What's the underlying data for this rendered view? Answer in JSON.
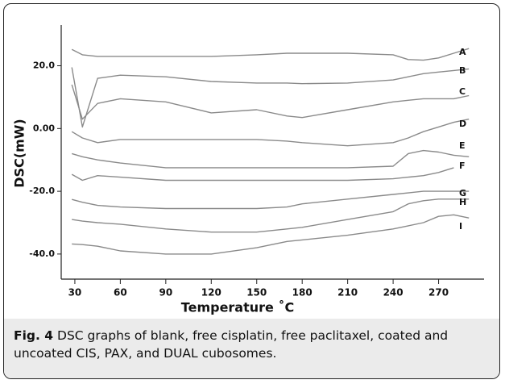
{
  "chart_data": {
    "type": "line",
    "xlabel": "Temperature ˚C",
    "ylabel": "DSC(mW)",
    "xlim": [
      21,
      300
    ],
    "ylim": [
      -48,
      33
    ],
    "xticks": [
      30,
      60,
      90,
      120,
      150,
      180,
      210,
      240,
      270
    ],
    "yticks": [
      {
        "value": 20,
        "label": "20.0"
      },
      {
        "value": 0,
        "label": "0.00"
      },
      {
        "value": -20,
        "label": "-20.0"
      },
      {
        "value": -40,
        "label": "-40.0"
      }
    ],
    "x": [
      28,
      35,
      45,
      60,
      90,
      120,
      150,
      170,
      180,
      210,
      240,
      250,
      260,
      270,
      280,
      290
    ],
    "series": [
      {
        "name": "A",
        "color": "#8a8a8a",
        "values": [
          25.2,
          23.5,
          23,
          23,
          23,
          23,
          23.5,
          24,
          24,
          24,
          23.5,
          22,
          21.8,
          22.5,
          24,
          25.5
        ]
      },
      {
        "name": "B",
        "color": "#8a8a8a",
        "values": [
          19.5,
          0.5,
          16,
          17,
          16.5,
          15,
          14.5,
          14.5,
          14.3,
          14.5,
          15.5,
          16.5,
          17.5,
          18,
          18.5,
          19
        ]
      },
      {
        "name": "C",
        "color": "#8a8a8a",
        "values": [
          14,
          3,
          8,
          9.5,
          8.5,
          5,
          6,
          4,
          3.5,
          6,
          8.5,
          9,
          9.5,
          9.5,
          9.5,
          10.5
        ]
      },
      {
        "name": "D",
        "color": "#8a8a8a",
        "values": [
          -1,
          -3,
          -4.5,
          -3.5,
          -3.5,
          -3.5,
          -3.5,
          -4,
          -4.5,
          -5.5,
          -4.5,
          -3,
          -1,
          0.5,
          2,
          3
        ]
      },
      {
        "name": "E",
        "color": "#8a8a8a",
        "values": [
          -8,
          -9,
          -10,
          -11,
          -12.5,
          -12.5,
          -12.5,
          -12.5,
          -12.5,
          -12.5,
          -12,
          -8,
          -7,
          -7.5,
          -8.5,
          -9
        ]
      },
      {
        "name": "F",
        "color": "#8a8a8a",
        "values": [
          -14.6,
          -16.5,
          -15,
          -15.5,
          -16.5,
          -16.5,
          -16.5,
          -16.5,
          -16.5,
          -16.5,
          -16,
          -15.5,
          -15,
          -14,
          -12.5,
          null
        ]
      },
      {
        "name": "G",
        "color": "#8a8a8a",
        "values": [
          -22.6,
          -23.5,
          -24.5,
          -25,
          -25.5,
          -25.5,
          -25.5,
          -25,
          -24,
          -22.5,
          -21,
          -20.5,
          -20,
          -20,
          -20,
          -20
        ]
      },
      {
        "name": "H",
        "color": "#8a8a8a",
        "values": [
          -29,
          -29.5,
          -30,
          -30.5,
          -32,
          -33,
          -33,
          -32,
          -31.5,
          -29,
          -26.5,
          -24,
          -23,
          -22.5,
          -22.5,
          -22.5
        ]
      },
      {
        "name": "I",
        "color": "#8a8a8a",
        "values": [
          -36.8,
          -37,
          -37.5,
          -39,
          -40,
          -40,
          -38,
          -36,
          -35.5,
          -34,
          -32,
          -31,
          -30,
          -28,
          -27.5,
          -28.5
        ]
      }
    ]
  },
  "caption": {
    "label": "Fig. 4",
    "text": " DSC graphs of blank, free cisplatin, free paclitaxel, coated and uncoated CIS, PAX, and DUAL cubosomes."
  }
}
